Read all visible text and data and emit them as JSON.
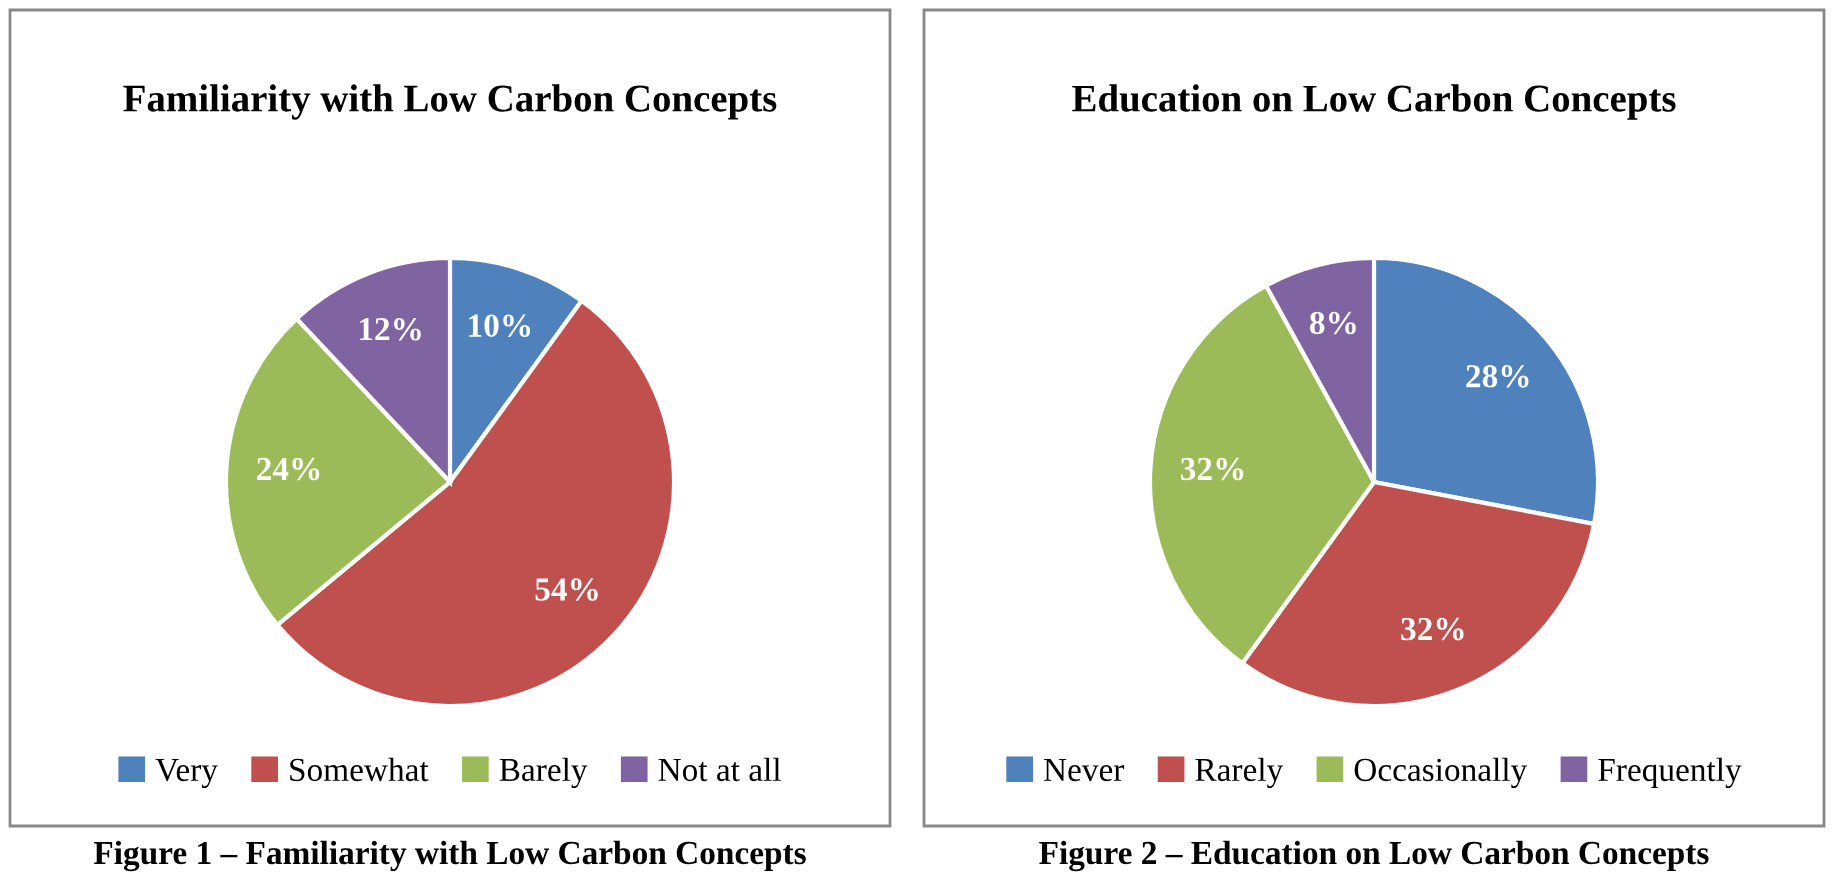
{
  "chart_data": [
    {
      "type": "pie",
      "title": "Familiarity with Low Carbon Concepts",
      "categories": [
        "Very",
        "Somewhat",
        "Barely",
        "Not at all"
      ],
      "values": [
        10,
        54,
        24,
        12
      ],
      "colors": [
        "#4f81bd",
        "#c0504d",
        "#9bbb59",
        "#8064a2"
      ],
      "value_labels": [
        "10%",
        "54%",
        "24%",
        "12%"
      ],
      "legend": "bottom",
      "annotations": [
        "Figure 1 – Familiarity with Low Carbon Concepts"
      ]
    },
    {
      "type": "pie",
      "title": "Education on Low Carbon Concepts",
      "categories": [
        "Never",
        "Rarely",
        "Occasionally",
        "Frequently"
      ],
      "values": [
        28,
        32,
        32,
        8
      ],
      "colors": [
        "#4f81bd",
        "#c0504d",
        "#9bbb59",
        "#8064a2"
      ],
      "value_labels": [
        "28%",
        "32%",
        "32%",
        "8%"
      ],
      "legend": "bottom",
      "annotations": [
        "Figure 2 – Education on Low Carbon Concepts"
      ]
    }
  ]
}
